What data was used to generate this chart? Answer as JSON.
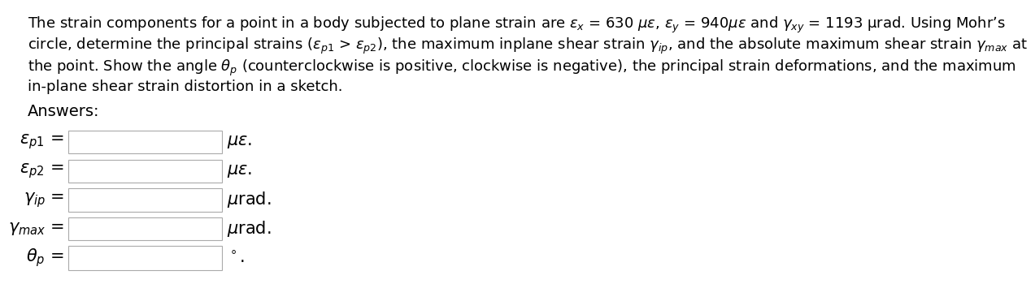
{
  "background_color": "#ffffff",
  "text_color": "#000000",
  "box_color": "#ffffff",
  "box_edge_color": "#aaaaaa",
  "title_fontsize": 13.0,
  "label_fontsize": 15,
  "unit_fontsize": 15,
  "answers_fontsize": 14,
  "answers_label": "Answers:",
  "title_line1": "The strain components for a point in a body subjected to plane strain are $\\varepsilon_x$ = 630 $\\mu\\varepsilon$, $\\varepsilon_y$ = 940$\\mu\\varepsilon$ and $\\gamma_{xy}$ = 1193 μrad. Using Mohr’s",
  "title_line2": "circle, determine the principal strains ($\\varepsilon_{p1}$ > $\\varepsilon_{p2}$), the maximum inplane shear strain $\\gamma_{ip}$, and the absolute maximum shear strain $\\gamma_{max}$ at",
  "title_line3": "the point. Show the angle $\\theta_p$ (counterclockwise is positive, clockwise is negative), the principal strain deformations, and the maximum",
  "title_line4": "in-plane shear strain distortion in a sketch.",
  "rows": [
    {
      "label": "$\\varepsilon_{p1}$ =",
      "unit": "$\\mu\\varepsilon$."
    },
    {
      "label": "$\\varepsilon_{p2}$ =",
      "unit": "$\\mu\\varepsilon$."
    },
    {
      "label": "$\\gamma_{ip}$ =",
      "unit": "$\\mu$rad."
    },
    {
      "label": "$\\gamma_{max}$ =",
      "unit": "$\\mu$rad."
    },
    {
      "label": "$\\theta_{p}$ =",
      "unit": "$^\\circ$."
    }
  ]
}
